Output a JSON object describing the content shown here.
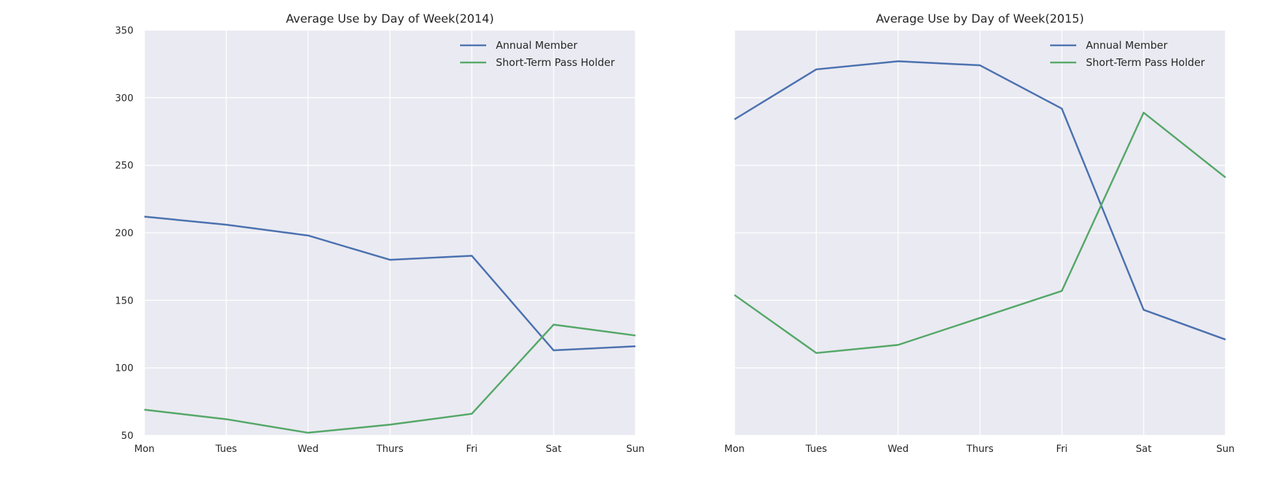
{
  "chart_data": [
    {
      "type": "line",
      "title": "Average Use by Day of Week(2014)",
      "xlabel": "",
      "ylabel": "",
      "categories": [
        "Mon",
        "Tues",
        "Wed",
        "Thurs",
        "Fri",
        "Sat",
        "Sun"
      ],
      "ylim": [
        50,
        350
      ],
      "yticks": [
        50,
        100,
        150,
        200,
        250,
        300,
        350
      ],
      "grid": true,
      "legend_position": "top-right",
      "series": [
        {
          "name": "Annual Member",
          "color": "#4c72b0",
          "values": [
            212,
            206,
            198,
            180,
            183,
            113,
            116
          ]
        },
        {
          "name": "Short-Term Pass Holder",
          "color": "#55a868",
          "values": [
            69,
            62,
            52,
            58,
            66,
            132,
            124
          ]
        }
      ]
    },
    {
      "type": "line",
      "title": "Average Use by Day of Week(2015)",
      "xlabel": "",
      "ylabel": "",
      "categories": [
        "Mon",
        "Tues",
        "Wed",
        "Thurs",
        "Fri",
        "Sat",
        "Sun"
      ],
      "ylim": [
        50,
        350
      ],
      "yticks": [],
      "grid": true,
      "legend_position": "top-right",
      "series": [
        {
          "name": "Annual Member",
          "color": "#4c72b0",
          "values": [
            284,
            321,
            327,
            324,
            292,
            143,
            121
          ]
        },
        {
          "name": "Short-Term Pass Holder",
          "color": "#55a868",
          "values": [
            154,
            111,
            117,
            137,
            157,
            289,
            241
          ]
        }
      ]
    }
  ]
}
